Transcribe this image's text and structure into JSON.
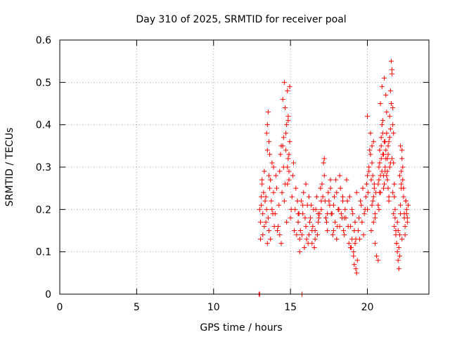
{
  "chart_data": {
    "type": "scatter",
    "title": "Day 310 of 2025, SRMTID for receiver poal",
    "xlabel": "GPS time / hours",
    "ylabel": "SRMTID / TECUs",
    "xlim": [
      0,
      24
    ],
    "ylim": [
      0,
      0.6
    ],
    "xticks": [
      0,
      5,
      10,
      15,
      20
    ],
    "xtick_labels": [
      "0",
      "5",
      "10",
      "15",
      "20"
    ],
    "yticks": [
      0,
      0.1,
      0.2,
      0.3,
      0.4,
      0.5,
      0.6
    ],
    "ytick_labels": [
      "0",
      "0.1",
      "0.2",
      "0.3",
      "0.4",
      "0.5",
      "0.6"
    ],
    "grid": true,
    "marker": "+",
    "color": "#ff0000",
    "series": [
      {
        "name": "SRMTID",
        "x": [
          12.95,
          13.0,
          15.75,
          13.0,
          13.05,
          13.1,
          13.15,
          13.2,
          13.25,
          13.3,
          13.35,
          13.4,
          13.45,
          13.5,
          13.55,
          13.6,
          13.65,
          13.7,
          13.75,
          13.8,
          13.85,
          13.9,
          13.95,
          13.05,
          13.1,
          13.15,
          13.2,
          13.3,
          13.4,
          13.5,
          13.6,
          13.7,
          13.8,
          13.9,
          13.45,
          13.5,
          13.55,
          13.6,
          13.65,
          14.0,
          14.1,
          14.2,
          14.3,
          14.4,
          14.5,
          14.6,
          14.7,
          14.8,
          14.9,
          15.0,
          15.1,
          15.2,
          15.3,
          15.4,
          15.5,
          14.05,
          14.15,
          14.25,
          14.35,
          14.45,
          14.55,
          14.65,
          14.75,
          14.85,
          14.95,
          15.05,
          15.15,
          15.25,
          15.35,
          15.45,
          14.6,
          14.65,
          14.7,
          14.75,
          14.8,
          14.85,
          14.9,
          14.95,
          14.3,
          14.4,
          14.5,
          14.55,
          14.8,
          14.85,
          14.9,
          15.5,
          15.6,
          15.7,
          15.8,
          15.9,
          16.0,
          16.1,
          16.2,
          16.3,
          16.4,
          16.5,
          16.6,
          16.7,
          16.8,
          16.9,
          17.0,
          15.55,
          15.65,
          15.75,
          15.85,
          15.95,
          16.05,
          16.15,
          16.25,
          16.35,
          16.45,
          16.55,
          16.65,
          16.75,
          16.85,
          16.95,
          15.6,
          15.8,
          16.0,
          16.2,
          16.4,
          16.6,
          16.8,
          17.0,
          17.1,
          17.2,
          17.3,
          17.4,
          17.5,
          17.6,
          17.7,
          17.8,
          17.9,
          18.0,
          18.1,
          18.2,
          18.3,
          18.4,
          18.5,
          17.05,
          17.15,
          17.25,
          17.35,
          17.45,
          17.55,
          17.65,
          17.75,
          17.85,
          17.95,
          18.05,
          18.15,
          18.25,
          18.35,
          18.45,
          17.2,
          17.4,
          17.6,
          17.8,
          18.0,
          18.2,
          18.4,
          18.5,
          18.6,
          18.7,
          18.8,
          18.9,
          19.0,
          19.1,
          19.2,
          19.3,
          19.4,
          19.5,
          19.6,
          19.7,
          19.8,
          19.9,
          20.0,
          18.55,
          18.65,
          18.75,
          18.85,
          18.95,
          19.05,
          19.15,
          19.25,
          19.35,
          19.45,
          19.55,
          19.65,
          19.75,
          19.85,
          19.95,
          19.1,
          19.15,
          19.2,
          19.25,
          19.3,
          18.9,
          19.0,
          20.0,
          20.05,
          20.1,
          20.15,
          20.2,
          20.25,
          20.3,
          20.35,
          20.4,
          20.45,
          20.5,
          20.0,
          20.1,
          20.2,
          20.3,
          20.4,
          20.5,
          20.6,
          20.7,
          20.25,
          20.3,
          20.35,
          20.4,
          20.45,
          20.5,
          20.55,
          20.7,
          20.75,
          20.8,
          20.85,
          20.9,
          20.95,
          21.0,
          21.05,
          21.1,
          21.15,
          21.2,
          21.25,
          21.3,
          21.35,
          21.4,
          21.45,
          21.5,
          20.75,
          20.8,
          20.85,
          20.9,
          20.95,
          21.0,
          21.05,
          21.1,
          21.15,
          21.2,
          21.25,
          21.3,
          21.35,
          21.4,
          21.45,
          20.7,
          20.75,
          20.8,
          20.85,
          20.9,
          20.95,
          21.0,
          21.05,
          21.1,
          21.15,
          21.2,
          21.25,
          21.3,
          21.35,
          21.4,
          21.45,
          21.5,
          21.55,
          21.6,
          21.65,
          21.7,
          21.75,
          21.8,
          21.85,
          21.9,
          21.95,
          22.0,
          22.05,
          22.1,
          22.15,
          22.2,
          22.25,
          22.3,
          22.35,
          22.4,
          22.45,
          22.5,
          22.55,
          22.6,
          22.65,
          21.5,
          21.55,
          21.6,
          21.65,
          21.7,
          21.75,
          21.8,
          21.85,
          21.9,
          21.95,
          22.0,
          22.05,
          22.1,
          22.15,
          22.2,
          22.25,
          22.3,
          22.35,
          22.4,
          22.45,
          22.5,
          22.55,
          22.6,
          21.6,
          21.65,
          21.7,
          21.75,
          22.1,
          22.15,
          22.2,
          22.25
        ],
        "y": [
          0.0,
          0.0,
          0.0,
          0.2,
          0.17,
          0.23,
          0.26,
          0.14,
          0.24,
          0.29,
          0.22,
          0.17,
          0.2,
          0.12,
          0.18,
          0.15,
          0.25,
          0.27,
          0.22,
          0.31,
          0.19,
          0.24,
          0.16,
          0.13,
          0.21,
          0.27,
          0.19,
          0.16,
          0.23,
          0.34,
          0.28,
          0.13,
          0.2,
          0.3,
          0.38,
          0.4,
          0.43,
          0.36,
          0.33,
          0.19,
          0.25,
          0.16,
          0.29,
          0.35,
          0.46,
          0.22,
          0.38,
          0.3,
          0.27,
          0.18,
          0.23,
          0.31,
          0.2,
          0.14,
          0.19,
          0.28,
          0.15,
          0.21,
          0.33,
          0.24,
          0.37,
          0.26,
          0.17,
          0.42,
          0.49,
          0.2,
          0.28,
          0.15,
          0.25,
          0.22,
          0.5,
          0.44,
          0.34,
          0.4,
          0.48,
          0.32,
          0.29,
          0.36,
          0.14,
          0.12,
          0.35,
          0.3,
          0.26,
          0.41,
          0.33,
          0.17,
          0.13,
          0.22,
          0.19,
          0.11,
          0.16,
          0.21,
          0.14,
          0.18,
          0.12,
          0.2,
          0.15,
          0.23,
          0.17,
          0.19,
          0.22,
          0.19,
          0.15,
          0.14,
          0.24,
          0.18,
          0.13,
          0.12,
          0.17,
          0.21,
          0.16,
          0.11,
          0.2,
          0.14,
          0.18,
          0.25,
          0.1,
          0.21,
          0.26,
          0.23,
          0.15,
          0.13,
          0.19,
          0.2,
          0.23,
          0.28,
          0.18,
          0.15,
          0.22,
          0.25,
          0.19,
          0.21,
          0.17,
          0.24,
          0.2,
          0.16,
          0.19,
          0.22,
          0.18,
          0.26,
          0.31,
          0.22,
          0.17,
          0.24,
          0.21,
          0.19,
          0.14,
          0.23,
          0.27,
          0.16,
          0.2,
          0.25,
          0.18,
          0.15,
          0.32,
          0.19,
          0.27,
          0.15,
          0.13,
          0.28,
          0.23,
          0.14,
          0.18,
          0.22,
          0.12,
          0.16,
          0.2,
          0.1,
          0.17,
          0.24,
          0.15,
          0.13,
          0.21,
          0.25,
          0.19,
          0.23,
          0.28,
          0.2,
          0.27,
          0.16,
          0.23,
          0.11,
          0.19,
          0.15,
          0.13,
          0.08,
          0.18,
          0.22,
          0.17,
          0.14,
          0.2,
          0.26,
          0.09,
          0.07,
          0.12,
          0.06,
          0.05,
          0.11,
          0.13,
          0.2,
          0.24,
          0.29,
          0.34,
          0.38,
          0.27,
          0.31,
          0.22,
          0.36,
          0.25,
          0.18,
          0.42,
          0.3,
          0.33,
          0.35,
          0.23,
          0.19,
          0.09,
          0.08,
          0.15,
          0.21,
          0.28,
          0.17,
          0.26,
          0.12,
          0.24,
          0.26,
          0.3,
          0.34,
          0.28,
          0.37,
          0.4,
          0.33,
          0.25,
          0.36,
          0.29,
          0.32,
          0.38,
          0.27,
          0.35,
          0.23,
          0.3,
          0.31,
          0.2,
          0.24,
          0.45,
          0.32,
          0.49,
          0.41,
          0.28,
          0.51,
          0.36,
          0.47,
          0.43,
          0.29,
          0.33,
          0.22,
          0.37,
          0.21,
          0.27,
          0.31,
          0.24,
          0.35,
          0.29,
          0.38,
          0.33,
          0.26,
          0.3,
          0.34,
          0.28,
          0.32,
          0.25,
          0.36,
          0.42,
          0.48,
          0.55,
          0.53,
          0.44,
          0.38,
          0.23,
          0.18,
          0.15,
          0.12,
          0.1,
          0.08,
          0.06,
          0.14,
          0.21,
          0.29,
          0.34,
          0.27,
          0.25,
          0.19,
          0.16,
          0.22,
          0.2,
          0.17,
          0.21,
          0.39,
          0.45,
          0.52,
          0.4,
          0.31,
          0.26,
          0.2,
          0.14,
          0.12,
          0.17,
          0.15,
          0.11,
          0.09,
          0.19,
          0.25,
          0.32,
          0.3,
          0.23,
          0.18,
          0.14,
          0.22,
          0.19,
          0.18,
          0.32,
          0.24,
          0.19,
          0.16,
          0.28,
          0.35,
          0.26,
          0.13
        ]
      }
    ]
  }
}
